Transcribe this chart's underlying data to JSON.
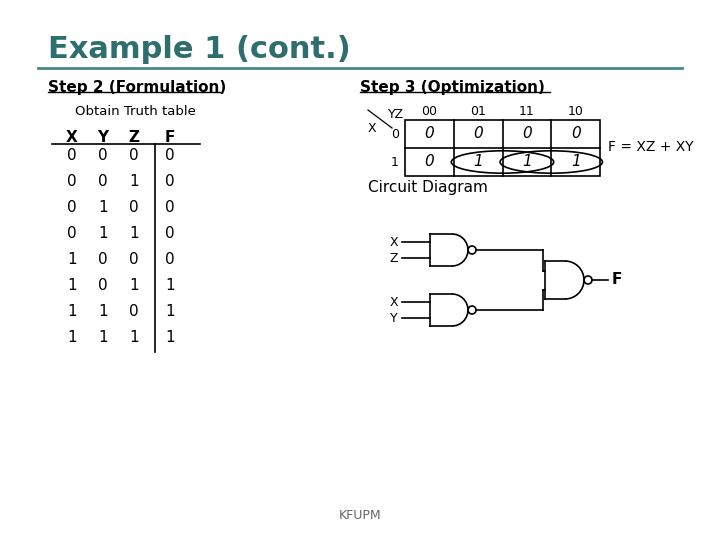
{
  "title": "Example 1 (cont.)",
  "title_color": "#2F6E6E",
  "background_color": "#FFFFFF",
  "border_color": "#4A8888",
  "step2_title": "Step 2 (Formulation)",
  "step3_title": "Step 3 (Optimization)",
  "obtain_text": "Obtain Truth table",
  "truth_table_headers": [
    "X",
    "Y",
    "Z",
    "F"
  ],
  "truth_table_rows": [
    [
      0,
      0,
      0,
      0
    ],
    [
      0,
      0,
      1,
      0
    ],
    [
      0,
      1,
      0,
      0
    ],
    [
      0,
      1,
      1,
      0
    ],
    [
      1,
      0,
      0,
      0
    ],
    [
      1,
      0,
      1,
      1
    ],
    [
      1,
      1,
      0,
      1
    ],
    [
      1,
      1,
      1,
      1
    ]
  ],
  "kmap_yz_labels": [
    "00",
    "01",
    "11",
    "10"
  ],
  "kmap_x_labels": [
    "0",
    "1"
  ],
  "kmap_values": [
    [
      0,
      0,
      0,
      0
    ],
    [
      0,
      1,
      1,
      1
    ]
  ],
  "formula": "F = XZ + XY",
  "circuit_label": "Circuit Diagram",
  "footer": "KFUPM",
  "text_color": "#000000",
  "table_line_color": "#000000"
}
